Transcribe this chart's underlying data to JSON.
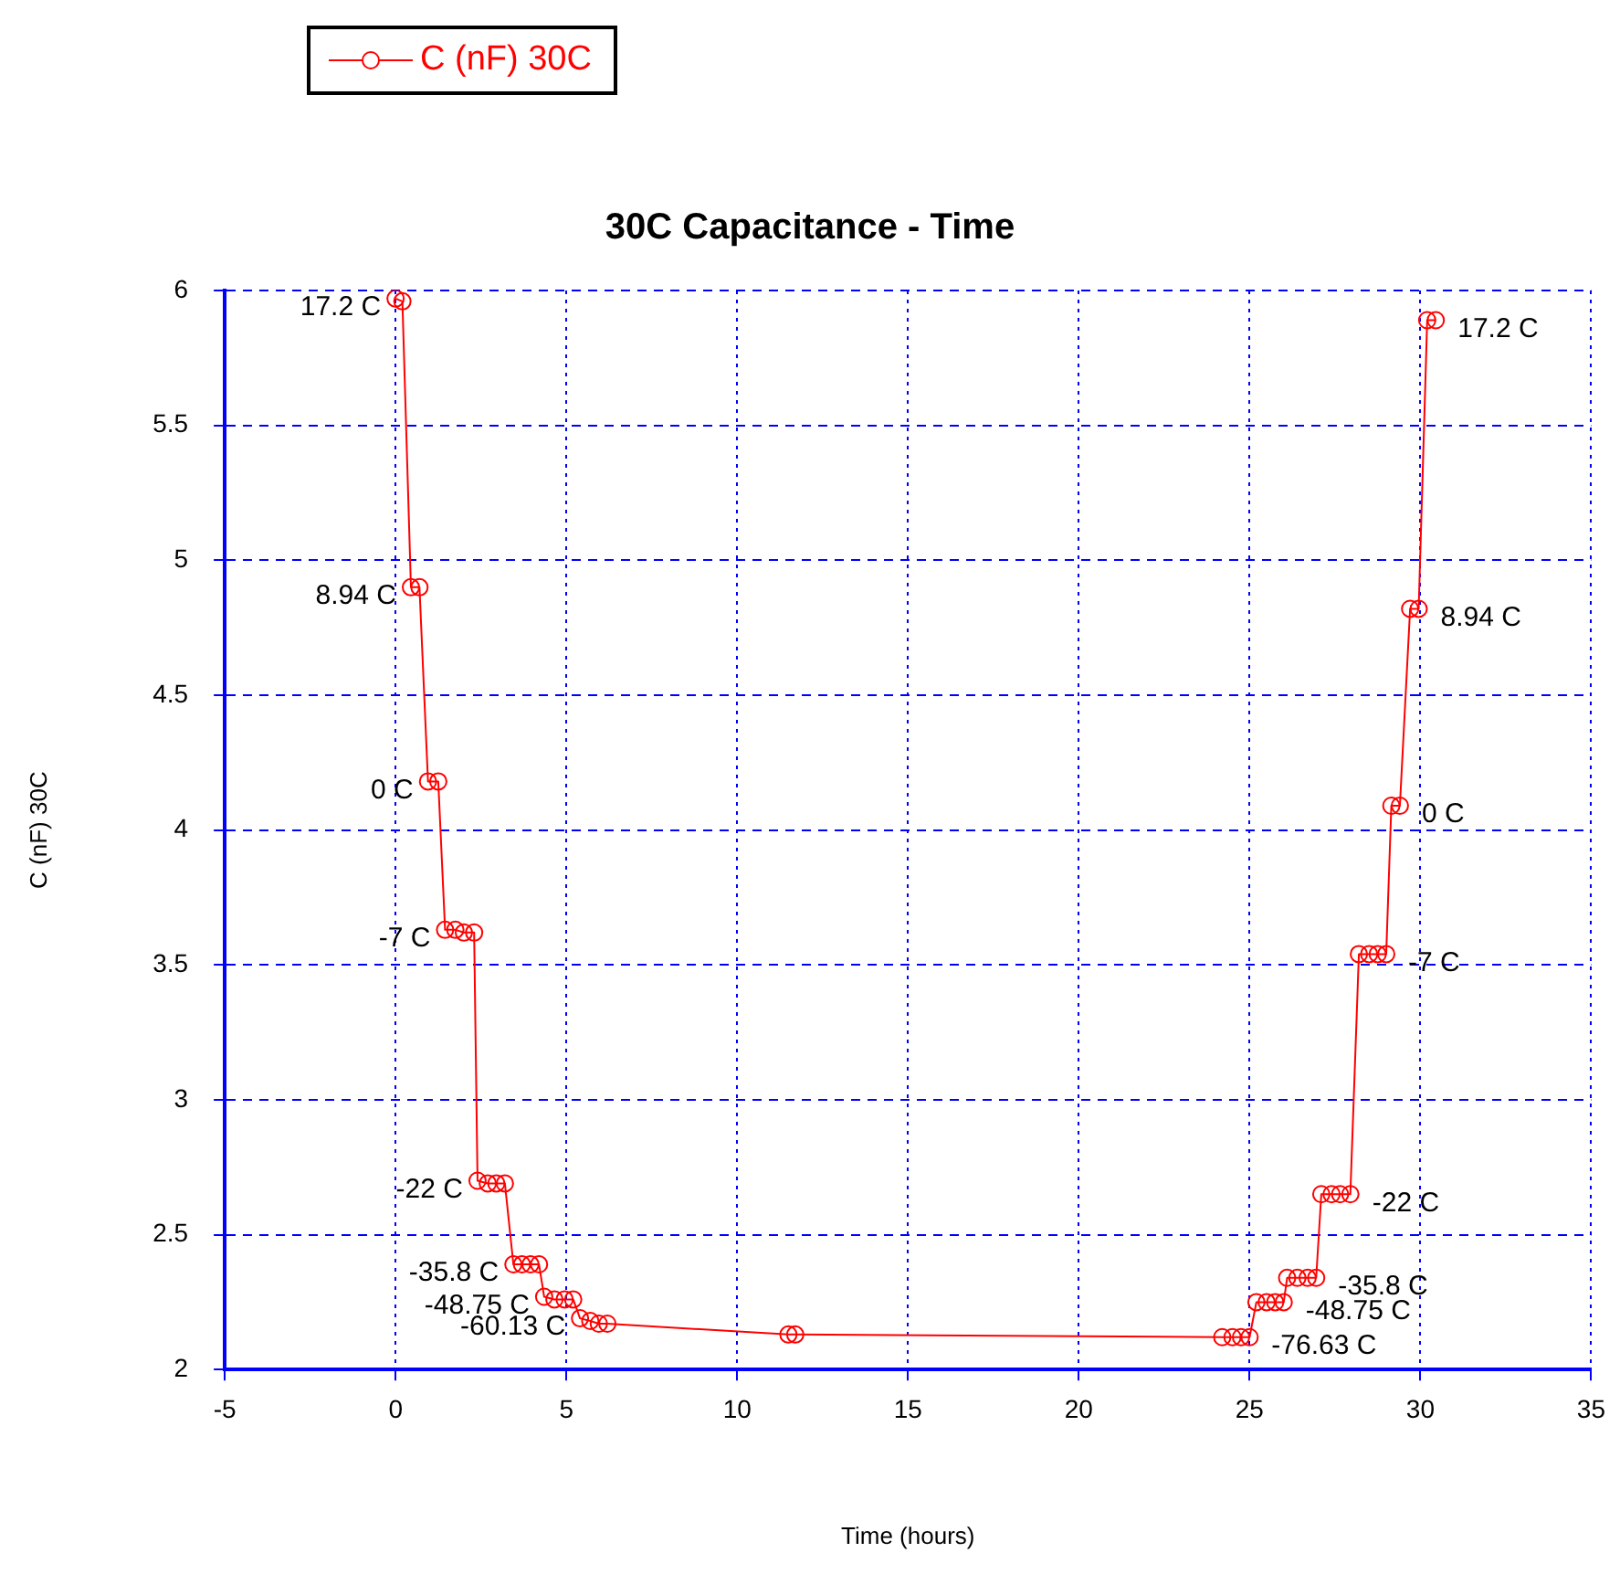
{
  "chart_data": {
    "type": "line",
    "title": "30C Capacitance - Time",
    "xlabel": "Time (hours)",
    "ylabel": "C (nF) 30C",
    "series": [
      {
        "name": "C (nF) 30C",
        "color": "#ff0000",
        "x": [
          0,
          0.2,
          0.45,
          0.7,
          0.95,
          1.25,
          1.45,
          1.75,
          2.0,
          2.3,
          2.4,
          2.7,
          2.95,
          3.2,
          3.45,
          3.7,
          3.95,
          4.2,
          4.35,
          4.65,
          4.95,
          5.2,
          5.4,
          5.7,
          5.95,
          6.2,
          11.5,
          11.7,
          24.2,
          24.5,
          24.75,
          25.0,
          25.2,
          25.5,
          25.75,
          26.0,
          26.1,
          26.4,
          26.7,
          26.95,
          27.1,
          27.4,
          27.65,
          27.95,
          28.2,
          28.5,
          28.75,
          29.0,
          29.15,
          29.4,
          29.7,
          29.95,
          30.2,
          30.45
        ],
        "values": [
          5.97,
          5.96,
          4.9,
          4.9,
          4.18,
          4.18,
          3.63,
          3.63,
          3.62,
          3.62,
          2.7,
          2.69,
          2.69,
          2.69,
          2.39,
          2.39,
          2.39,
          2.39,
          2.27,
          2.26,
          2.26,
          2.26,
          2.19,
          2.18,
          2.17,
          2.17,
          2.13,
          2.13,
          2.12,
          2.12,
          2.12,
          2.12,
          2.25,
          2.25,
          2.25,
          2.25,
          2.34,
          2.34,
          2.34,
          2.34,
          2.65,
          2.65,
          2.65,
          2.65,
          3.54,
          3.54,
          3.54,
          3.54,
          4.09,
          4.09,
          4.82,
          4.82,
          5.89,
          5.89
        ]
      }
    ],
    "xlim": [
      -5,
      35
    ],
    "xticks": [
      -5,
      0,
      5,
      10,
      15,
      20,
      25,
      30,
      35
    ],
    "ylim": [
      2,
      6
    ],
    "yticks": [
      2,
      2.5,
      3,
      3.5,
      4,
      4.5,
      5,
      5.5,
      6
    ],
    "grid": true,
    "legend": "top left",
    "marker": "circle",
    "line_style": "solid",
    "annotations": [
      {
        "text": "17.2 C",
        "x": 0,
        "y": 5.97
      },
      {
        "text": "8.94 C",
        "x": 0.45,
        "y": 4.9
      },
      {
        "text": "0 C",
        "x": 0.95,
        "y": 4.18
      },
      {
        "text": "-7 C",
        "x": 1.45,
        "y": 3.63
      },
      {
        "text": "-22 C",
        "x": 2.4,
        "y": 2.7
      },
      {
        "text": "-35.8 C",
        "x": 3.45,
        "y": 2.39
      },
      {
        "text": "-48.75 C",
        "x": 4.35,
        "y": 2.27
      },
      {
        "text": "-60.13 C",
        "x": 5.4,
        "y": 2.19
      },
      {
        "text": "17.2 C",
        "x": 30.45,
        "y": 5.89
      },
      {
        "text": "8.94 C",
        "x": 29.95,
        "y": 4.82
      },
      {
        "text": "0 C",
        "x": 29.4,
        "y": 4.09
      },
      {
        "text": "-7 C",
        "x": 29.0,
        "y": 3.54
      },
      {
        "text": "-22 C",
        "x": 27.95,
        "y": 2.65
      },
      {
        "text": "-35.8 C",
        "x": 26.95,
        "y": 2.34
      },
      {
        "text": "-48.75 C",
        "x": 26.0,
        "y": 2.25
      },
      {
        "text": "-76.63 C",
        "x": 25.0,
        "y": 2.12
      }
    ]
  }
}
